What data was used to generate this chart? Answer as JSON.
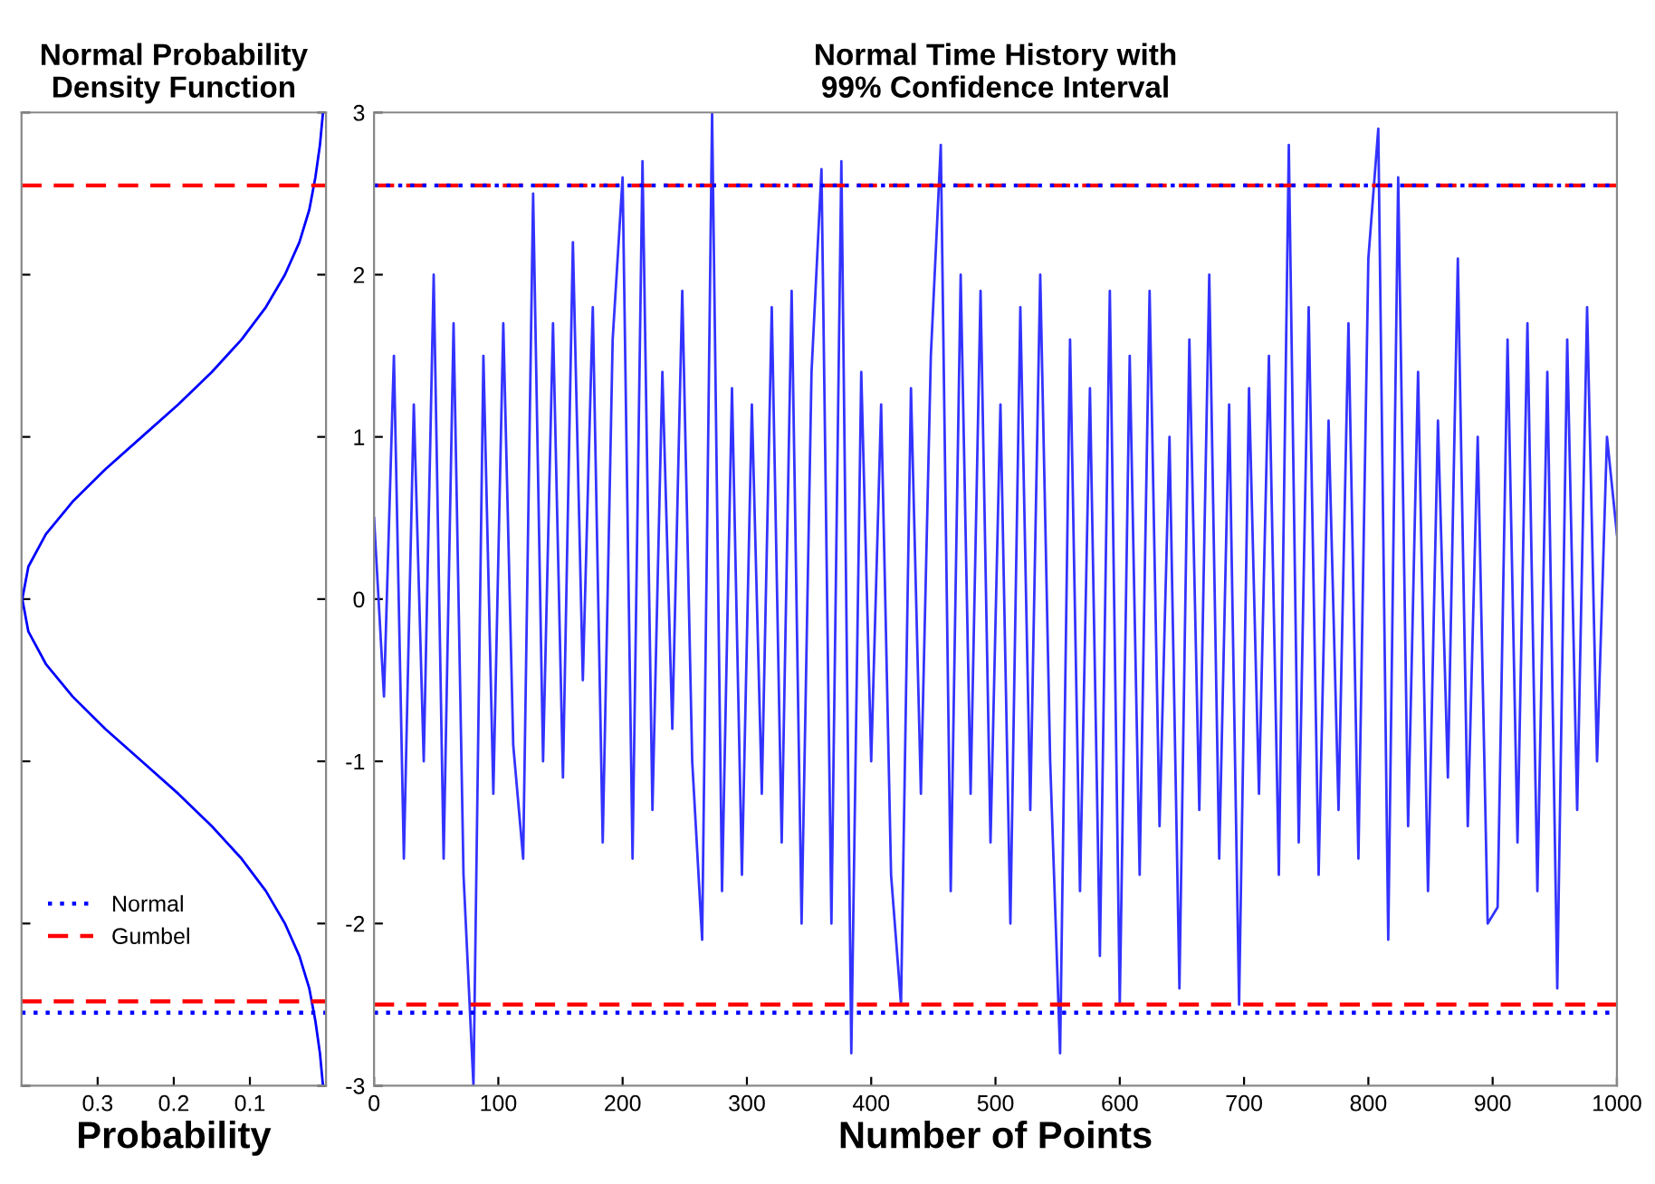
{
  "chart_data": [
    {
      "type": "line",
      "title": "Normal Probability\nDensity Function",
      "xlabel": "Probability",
      "series": [
        {
          "color": "#0000ff",
          "x": [
            0.004,
            0.008,
            0.014,
            0.022,
            0.035,
            0.054,
            0.079,
            0.111,
            0.15,
            0.194,
            0.242,
            0.29,
            0.333,
            0.368,
            0.391,
            0.399,
            0.391,
            0.368,
            0.333,
            0.29,
            0.242,
            0.194,
            0.15,
            0.111,
            0.079,
            0.054,
            0.035,
            0.022,
            0.014,
            0.008,
            0.004
          ],
          "values": [
            -3,
            -2.8,
            -2.6,
            -2.4,
            -2.2,
            -2,
            -1.8,
            -1.6,
            -1.4,
            -1.2,
            -1,
            -0.8,
            -0.6,
            -0.4,
            -0.2,
            0,
            0.2,
            0.4,
            0.6,
            0.8,
            1,
            1.2,
            1.4,
            1.6,
            1.8,
            2,
            2.2,
            2.4,
            2.6,
            2.8,
            3
          ]
        }
      ],
      "xlim": [
        0.4,
        0
      ],
      "xticks": [
        0.3,
        0.2,
        0.1
      ],
      "ylim": [
        -3,
        3
      ],
      "yticks": [
        -3,
        -2,
        -1,
        0,
        1,
        2,
        3
      ],
      "tick_labels": "x",
      "grid": false,
      "legend": "bottom left",
      "ref_lines": [
        {
          "axis": "y",
          "value": -2.55,
          "label": "Normal",
          "color": "#0000ff",
          "line_style": "dotted"
        },
        {
          "axis": "y",
          "value": 2.55,
          "label": "Gumbel",
          "color": "#ff0000",
          "line_style": "dashed"
        },
        {
          "axis": "y",
          "value": -2.48,
          "color": "#ff0000",
          "line_style": "dashed"
        }
      ]
    },
    {
      "type": "line",
      "title": "Normal Time History with\n99% Confidence Interval",
      "xlabel": "Number of Points",
      "series": [
        {
          "color": "#3333ff",
          "x": [
            0,
            8,
            16,
            24,
            32,
            40,
            48,
            56,
            64,
            72,
            80,
            88,
            96,
            104,
            112,
            120,
            128,
            136,
            144,
            152,
            160,
            168,
            176,
            184,
            192,
            200,
            208,
            216,
            224,
            232,
            240,
            248,
            256,
            264,
            272,
            280,
            288,
            296,
            304,
            312,
            320,
            328,
            336,
            344,
            352,
            360,
            368,
            376,
            384,
            392,
            400,
            408,
            416,
            424,
            432,
            440,
            448,
            456,
            464,
            472,
            480,
            488,
            496,
            504,
            512,
            520,
            528,
            536,
            544,
            552,
            560,
            568,
            576,
            584,
            592,
            600,
            608,
            616,
            624,
            632,
            640,
            648,
            656,
            664,
            672,
            680,
            688,
            696,
            704,
            712,
            720,
            728,
            736,
            744,
            752,
            760,
            768,
            776,
            784,
            792,
            800,
            808,
            816,
            824,
            832,
            840,
            848,
            856,
            864,
            872,
            880,
            888,
            896,
            904,
            912,
            920,
            928,
            936,
            944,
            952,
            960,
            968,
            976,
            984,
            992,
            1000
          ],
          "values": [
            0.5,
            -0.6,
            1.5,
            -1.6,
            1.2,
            -1.0,
            2.0,
            -1.6,
            1.7,
            -1.7,
            -3.0,
            1.5,
            -1.2,
            1.7,
            -0.9,
            -1.6,
            2.5,
            -1.0,
            1.7,
            -1.1,
            2.2,
            -0.5,
            1.8,
            -1.5,
            1.6,
            2.6,
            -1.6,
            2.7,
            -1.3,
            1.4,
            -0.8,
            1.9,
            -1.0,
            -2.1,
            3.0,
            -1.8,
            1.3,
            -1.7,
            1.2,
            -1.2,
            1.8,
            -1.5,
            1.9,
            -2.0,
            1.4,
            2.65,
            -2.0,
            2.7,
            -2.8,
            1.4,
            -1.0,
            1.2,
            -1.7,
            -2.5,
            1.3,
            -1.2,
            1.5,
            2.8,
            -1.8,
            2.0,
            -1.2,
            1.9,
            -1.5,
            1.2,
            -2.0,
            1.8,
            -1.3,
            2.0,
            -1.0,
            -2.8,
            1.6,
            -1.8,
            1.3,
            -2.2,
            1.9,
            -2.5,
            1.5,
            -1.7,
            1.9,
            -1.4,
            1.0,
            -2.4,
            1.6,
            -1.3,
            2.0,
            -1.6,
            1.2,
            -2.5,
            1.3,
            -1.2,
            1.5,
            -1.7,
            2.8,
            -1.5,
            1.8,
            -1.7,
            1.1,
            -1.3,
            1.7,
            -1.6,
            2.1,
            2.9,
            -2.1,
            2.6,
            -1.4,
            1.4,
            -1.8,
            1.1,
            -1.1,
            2.1,
            -1.4,
            1.0,
            -2.0,
            -1.9,
            1.6,
            -1.5,
            1.7,
            -1.8,
            1.4,
            -2.4,
            1.6,
            -1.3,
            1.8,
            -1.0,
            1.0,
            0.4
          ]
        }
      ],
      "xlim": [
        0,
        1000
      ],
      "xticks": [
        0,
        100,
        200,
        300,
        400,
        500,
        600,
        700,
        800,
        900,
        1000
      ],
      "ylim": [
        -3,
        3
      ],
      "yticks": [
        -3,
        -2,
        -1,
        0,
        1,
        2,
        3
      ],
      "grid": false,
      "ref_lines": [
        {
          "axis": "y",
          "value": 2.55,
          "color": "#ff0000",
          "line_style": "dashed"
        },
        {
          "axis": "y",
          "value": 2.55,
          "color": "#0000ff",
          "line_style": "dotted"
        },
        {
          "axis": "y",
          "value": -2.5,
          "color": "#ff0000",
          "line_style": "dashed"
        },
        {
          "axis": "y",
          "value": -2.55,
          "color": "#0000ff",
          "line_style": "dotted"
        }
      ]
    }
  ]
}
